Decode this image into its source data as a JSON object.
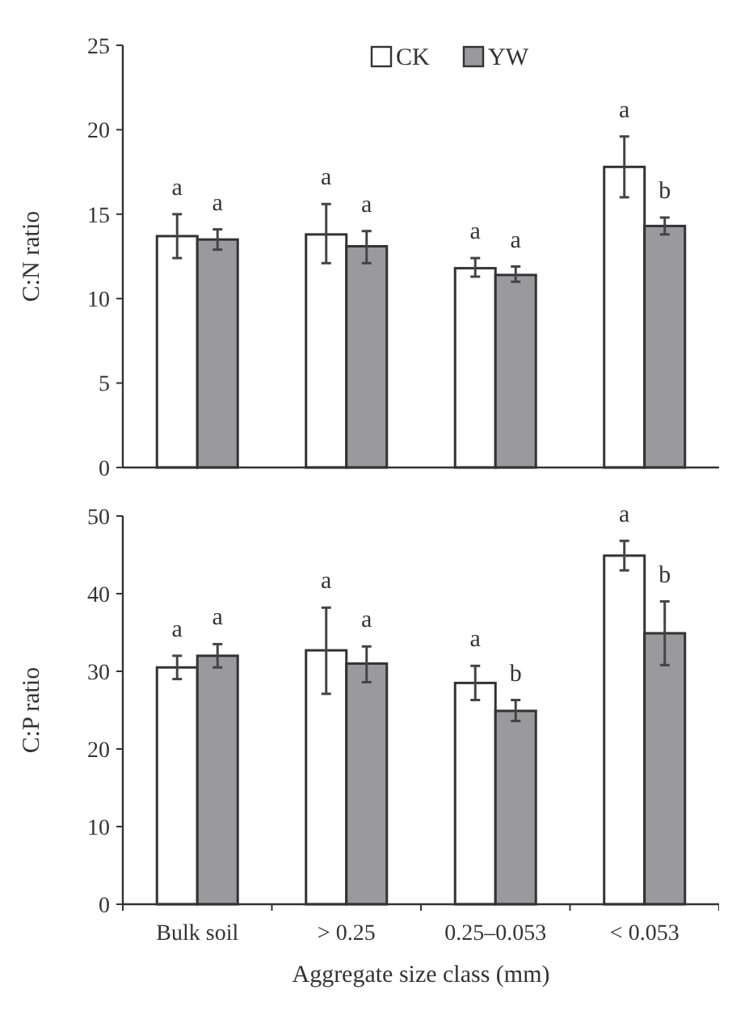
{
  "chart_data": [
    {
      "type": "bar",
      "ylabel": "C:N ratio",
      "categories": [
        null,
        null,
        null,
        null
      ],
      "tick_labels": "y",
      "legend": "top",
      "ylim": [
        0,
        25
      ],
      "yticks": [
        0,
        5,
        10,
        15,
        20,
        25
      ],
      "series": [
        {
          "name": "CK",
          "color": "#ffffff",
          "values": [
            13.7,
            13.8,
            11.8,
            17.8
          ],
          "errors": [
            [
              12.4,
              15.0
            ],
            [
              12.1,
              15.6
            ],
            [
              11.3,
              12.4
            ],
            [
              16.0,
              19.6
            ]
          ]
        },
        {
          "name": "YW",
          "color": "#9a9a9c",
          "values": [
            13.5,
            13.1,
            11.4,
            14.3
          ],
          "errors": [
            [
              12.9,
              14.1
            ],
            [
              12.1,
              14.0
            ],
            [
              11.0,
              11.9
            ],
            [
              13.8,
              14.8
            ]
          ]
        }
      ],
      "annotations": [
        "a",
        "a",
        "a",
        "a",
        "a",
        "a",
        "a",
        "b"
      ]
    },
    {
      "type": "bar",
      "ylabel": "C:P ratio",
      "xlabel": "Aggregate size class (mm)",
      "categories": [
        "Bulk soil",
        "> 0.25",
        "0.25–0.053",
        "< 0.053"
      ],
      "ylim": [
        0,
        50
      ],
      "yticks": [
        0,
        10,
        20,
        30,
        40,
        50
      ],
      "series": [
        {
          "color": "#ffffff",
          "values": [
            30.5,
            32.7,
            28.5,
            44.9
          ],
          "errors": [
            [
              29.0,
              32.0
            ],
            [
              27.1,
              38.2
            ],
            [
              26.3,
              30.7
            ],
            [
              43.0,
              46.8
            ]
          ]
        },
        {
          "color": "#9a9a9c",
          "values": [
            32.0,
            31.0,
            24.9,
            34.9
          ],
          "errors": [
            [
              30.5,
              33.5
            ],
            [
              28.6,
              33.2
            ],
            [
              23.6,
              26.3
            ],
            [
              30.8,
              39.0
            ]
          ]
        }
      ],
      "annotations": [
        "a",
        "a",
        "a",
        "a",
        "a",
        "b",
        "a",
        "b"
      ]
    }
  ]
}
